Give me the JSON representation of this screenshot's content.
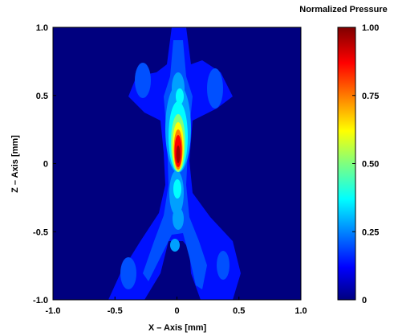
{
  "chart_data": {
    "type": "heatmap",
    "xlabel": "X – Axis [mm]",
    "ylabel": "Z – Axis [mm]",
    "xlim": [
      -1.0,
      1.0
    ],
    "ylim": [
      -1.0,
      1.0
    ],
    "x_ticks": [
      "-1.0",
      "-0.5",
      "0",
      "0.5",
      "1.0"
    ],
    "y_ticks": [
      "1.0",
      "0.5",
      "0",
      "-0.5",
      "-1.0"
    ],
    "colorbar": {
      "title": "Normalized Pressure",
      "range": [
        0,
        1.0
      ],
      "ticks": [
        "1.00",
        "0.75",
        "0.50",
        "0.25",
        "0"
      ],
      "colormap": "jet"
    },
    "features": [
      {
        "x": -0.02,
        "z": 0.05,
        "value": 1.0
      },
      {
        "x": 0.0,
        "z": 0.65,
        "value": 0.3
      },
      {
        "x": -0.02,
        "z": -0.5,
        "value": 0.25
      },
      {
        "x": -0.3,
        "z": 0.55,
        "value": 0.12
      },
      {
        "x": 0.4,
        "z": 0.55,
        "value": 0.1
      },
      {
        "x": -0.45,
        "z": -0.6,
        "value": 0.12
      },
      {
        "x": 0.45,
        "z": -0.65,
        "value": 0.1
      }
    ],
    "background_color": "#00007f"
  }
}
